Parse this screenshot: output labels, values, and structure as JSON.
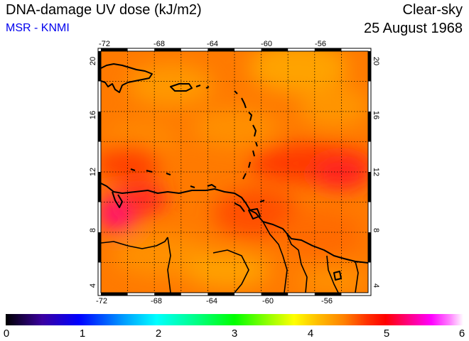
{
  "header": {
    "title": "DNA-damage UV dose (kJ/m2)",
    "source": "MSR - KNMI",
    "sky": "Clear-sky",
    "date": "25 August 1968"
  },
  "map": {
    "lon_range": [
      -72,
      -52
    ],
    "lat_range": [
      4,
      20
    ],
    "lon_ticks": [
      "-72",
      "-68",
      "-64",
      "-60",
      "-56"
    ],
    "lat_ticks": [
      "20",
      "16",
      "12",
      "8",
      "4"
    ],
    "gridlines": "dotted, every 2 degrees",
    "frame": "black/white alternating checkered border",
    "dominant_field_value": "4 to 5 kJ/m2 (orange to red), with magenta patch near 9N 71W"
  },
  "colorbar": {
    "range": [
      0,
      6
    ],
    "labels": [
      "0",
      "1",
      "2",
      "3",
      "4",
      "5",
      "6"
    ],
    "colors": [
      "#000000",
      "#3a00a0",
      "#0000ff",
      "#00a0ff",
      "#00ffff",
      "#00ff80",
      "#00ff00",
      "#a0ff00",
      "#ffff00",
      "#ffc000",
      "#ff8000",
      "#ff3000",
      "#ff0000",
      "#ff0080",
      "#ff00ff",
      "#ff80ff",
      "#ffffff"
    ]
  }
}
